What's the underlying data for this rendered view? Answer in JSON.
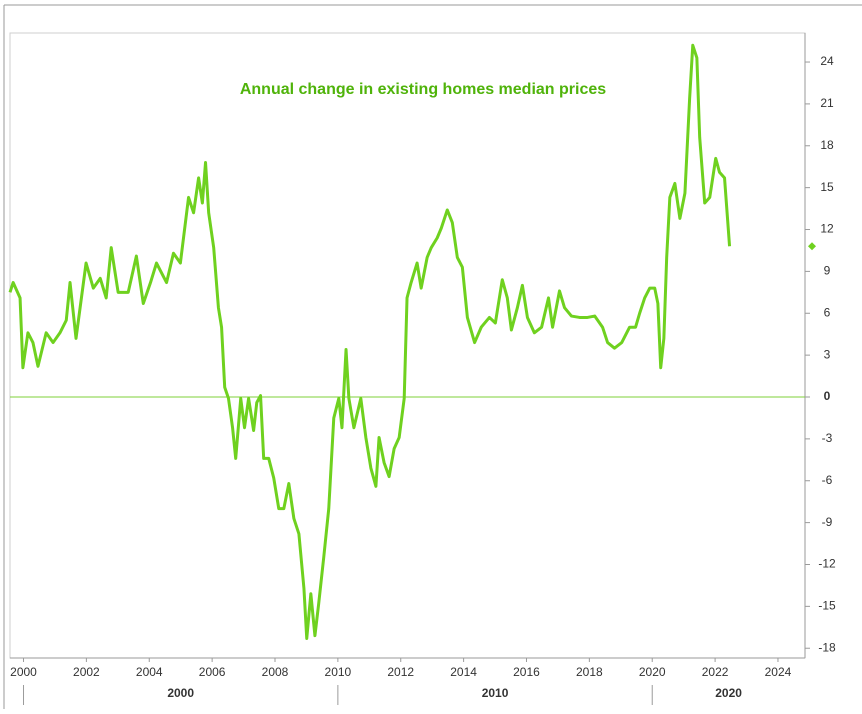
{
  "chart_data": {
    "type": "line",
    "title": "Annual change in existing homes median prices",
    "color": "#6fd11f",
    "x": [
      1999.57,
      1999.67,
      1999.89,
      1999.98,
      2000.14,
      2000.3,
      2000.46,
      2000.72,
      2000.94,
      2001.16,
      2001.36,
      2001.48,
      2001.67,
      2001.99,
      2002.22,
      2002.44,
      2002.63,
      2002.79,
      2003.01,
      2003.33,
      2003.59,
      2003.81,
      2004.04,
      2004.23,
      2004.55,
      2004.77,
      2004.99,
      2005.25,
      2005.41,
      2005.57,
      2005.69,
      2005.79,
      2005.89,
      2006.05,
      2006.2,
      2006.3,
      2006.4,
      2006.52,
      2006.65,
      2006.75,
      2006.91,
      2007.03,
      2007.16,
      2007.32,
      2007.42,
      2007.54,
      2007.64,
      2007.8,
      2007.96,
      2008.12,
      2008.28,
      2008.44,
      2008.6,
      2008.76,
      2008.92,
      2009.01,
      2009.14,
      2009.27,
      2009.39,
      2009.55,
      2009.71,
      2009.87,
      2010.03,
      2010.13,
      2010.26,
      2010.35,
      2010.51,
      2010.73,
      2010.89,
      2011.05,
      2011.21,
      2011.31,
      2011.47,
      2011.63,
      2011.79,
      2011.95,
      2012.11,
      2012.2,
      2012.33,
      2012.52,
      2012.65,
      2012.84,
      2012.97,
      2013.16,
      2013.29,
      2013.48,
      2013.64,
      2013.8,
      2013.96,
      2014.12,
      2014.35,
      2014.56,
      2014.82,
      2015.01,
      2015.23,
      2015.39,
      2015.52,
      2015.71,
      2015.87,
      2016.03,
      2016.25,
      2016.48,
      2016.7,
      2016.83,
      2017.05,
      2017.21,
      2017.43,
      2017.69,
      2017.94,
      2018.17,
      2018.42,
      2018.58,
      2018.8,
      2019.03,
      2019.28,
      2019.47,
      2019.6,
      2019.76,
      2019.92,
      2020.08,
      2020.18,
      2020.27,
      2020.37,
      2020.46,
      2020.56,
      2020.72,
      2020.88,
      2021.04,
      2021.19,
      2021.29,
      2021.42,
      2021.51,
      2021.67,
      2021.83,
      2022.02,
      2022.14,
      2022.3,
      2022.46
    ],
    "values": [
      7.5,
      8.2,
      7.1,
      2.1,
      4.6,
      3.9,
      2.2,
      4.6,
      3.9,
      4.6,
      5.5,
      8.2,
      4.2,
      9.6,
      7.8,
      8.5,
      7.1,
      10.7,
      7.5,
      7.5,
      10.1,
      6.7,
      8.2,
      9.6,
      8.2,
      10.3,
      9.6,
      14.3,
      13.2,
      15.7,
      13.9,
      16.8,
      13.2,
      10.7,
      6.4,
      5.0,
      0.7,
      -0.1,
      -2.2,
      -4.4,
      -0.1,
      -2.2,
      -0.1,
      -2.4,
      -0.4,
      0.1,
      -4.4,
      -4.4,
      -5.8,
      -8.0,
      -8.0,
      -6.2,
      -8.7,
      -9.8,
      -13.7,
      -17.3,
      -14.1,
      -17.1,
      -14.8,
      -11.5,
      -8.0,
      -1.5,
      -0.1,
      -2.2,
      3.4,
      -0.1,
      -2.2,
      -0.1,
      -2.9,
      -5.1,
      -6.4,
      -2.9,
      -4.7,
      -5.7,
      -3.7,
      -2.9,
      -0.1,
      7.1,
      8.2,
      9.6,
      7.8,
      10.0,
      10.7,
      11.4,
      12.1,
      13.4,
      12.5,
      10.0,
      9.3,
      5.7,
      3.9,
      5.0,
      5.7,
      5.3,
      8.4,
      7.1,
      4.8,
      6.4,
      8.0,
      5.7,
      4.6,
      5.0,
      7.1,
      5.0,
      7.6,
      6.4,
      5.8,
      5.7,
      5.7,
      5.8,
      5.0,
      3.9,
      3.5,
      3.9,
      5.0,
      5.0,
      6.0,
      7.1,
      7.8,
      7.8,
      6.7,
      2.1,
      4.2,
      10.0,
      14.3,
      15.3,
      12.8,
      14.6,
      21.4,
      25.2,
      24.3,
      18.6,
      13.9,
      14.3,
      17.1,
      16.1,
      15.7,
      10.8
    ],
    "xlim": [
      1999.57,
      2024.86
    ],
    "ylim": [
      -18.7,
      26.08
    ],
    "xticks": [
      2000,
      2002,
      2004,
      2006,
      2008,
      2010,
      2012,
      2014,
      2016,
      2018,
      2020,
      2022,
      2024
    ],
    "yticks": [
      -18,
      -15,
      -12,
      -9,
      -6,
      -3,
      0,
      3,
      6,
      9,
      12,
      15,
      18,
      21,
      24
    ],
    "x_groups": [
      2000,
      2010,
      2020
    ],
    "y_axis_side": "right"
  }
}
